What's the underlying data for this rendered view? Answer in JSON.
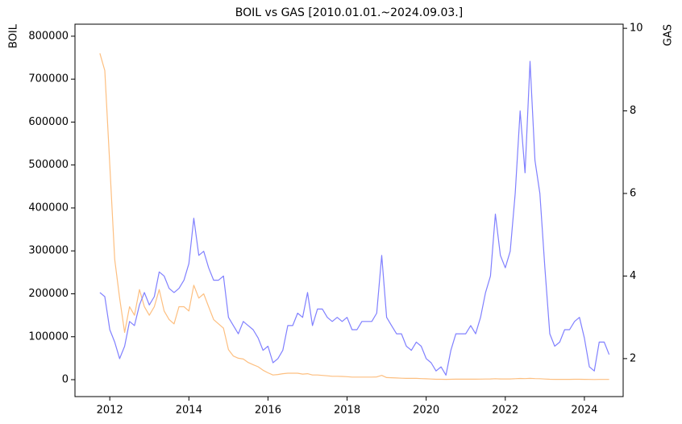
{
  "chart_data": {
    "type": "line",
    "title": "BOIL vs GAS [2010.01.01.~2024.09.03.]",
    "ylabel": "BOIL",
    "y2label": "GAS",
    "ylabel_color": "#ff8c00",
    "y2label_color": "#0000ff",
    "x": [
      2011.75,
      2011.875,
      2012.0,
      2012.125,
      2012.25,
      2012.375,
      2012.5,
      2012.625,
      2012.75,
      2012.875,
      2013.0,
      2013.125,
      2013.25,
      2013.375,
      2013.5,
      2013.625,
      2013.75,
      2013.875,
      2014.0,
      2014.125,
      2014.25,
      2014.375,
      2014.5,
      2014.625,
      2014.75,
      2014.875,
      2015.0,
      2015.125,
      2015.25,
      2015.375,
      2015.5,
      2015.625,
      2015.75,
      2015.875,
      2016.0,
      2016.125,
      2016.25,
      2016.375,
      2016.5,
      2016.625,
      2016.75,
      2016.875,
      2017.0,
      2017.125,
      2017.25,
      2017.375,
      2017.5,
      2017.625,
      2017.75,
      2017.875,
      2018.0,
      2018.125,
      2018.25,
      2018.375,
      2018.5,
      2018.625,
      2018.75,
      2018.875,
      2019.0,
      2019.125,
      2019.25,
      2019.375,
      2019.5,
      2019.625,
      2019.75,
      2019.875,
      2020.0,
      2020.125,
      2020.25,
      2020.375,
      2020.5,
      2020.625,
      2020.75,
      2020.875,
      2021.0,
      2021.125,
      2021.25,
      2021.375,
      2021.5,
      2021.625,
      2021.75,
      2021.875,
      2022.0,
      2022.125,
      2022.25,
      2022.375,
      2022.5,
      2022.625,
      2022.75,
      2022.875,
      2023.0,
      2023.125,
      2023.25,
      2023.375,
      2023.5,
      2023.625,
      2023.75,
      2023.875,
      2024.0,
      2024.125,
      2024.25,
      2024.375,
      2024.5,
      2024.625
    ],
    "series": [
      {
        "name": "BOIL",
        "color": "#fdbf80",
        "axis": "y",
        "values": [
          760000,
          720000,
          500000,
          280000,
          190000,
          110000,
          170000,
          150000,
          210000,
          170000,
          150000,
          170000,
          210000,
          160000,
          140000,
          130000,
          170000,
          170000,
          160000,
          220000,
          190000,
          200000,
          170000,
          140000,
          130000,
          120000,
          70000,
          55000,
          50000,
          48000,
          40000,
          35000,
          30000,
          22000,
          16000,
          11000,
          12000,
          14000,
          15000,
          15000,
          15000,
          13000,
          14000,
          11000,
          11000,
          10000,
          9000,
          8000,
          8000,
          7500,
          7000,
          6000,
          6000,
          6000,
          6000,
          6000,
          6500,
          10000,
          5000,
          4500,
          4000,
          3500,
          3000,
          3000,
          3000,
          2500,
          2000,
          1500,
          1000,
          1000,
          800,
          1000,
          1200,
          1200,
          1200,
          1300,
          1200,
          1300,
          1500,
          1700,
          2200,
          1800,
          1700,
          1800,
          2300,
          2800,
          2400,
          3000,
          2500,
          2200,
          1500,
          900,
          800,
          800,
          850,
          850,
          900,
          900,
          700,
          500,
          450,
          600,
          600,
          500
        ]
      },
      {
        "name": "GAS",
        "color": "#8080ff",
        "axis": "y2",
        "values": [
          3.6,
          3.5,
          2.7,
          2.4,
          2.0,
          2.3,
          2.9,
          2.8,
          3.3,
          3.6,
          3.3,
          3.5,
          4.1,
          4.0,
          3.7,
          3.6,
          3.7,
          3.9,
          4.3,
          5.4,
          4.5,
          4.6,
          4.2,
          3.9,
          3.9,
          4.0,
          3.0,
          2.8,
          2.6,
          2.9,
          2.8,
          2.7,
          2.5,
          2.2,
          2.3,
          1.9,
          2.0,
          2.2,
          2.8,
          2.8,
          3.1,
          3.0,
          3.6,
          2.8,
          3.2,
          3.2,
          3.0,
          2.9,
          3.0,
          2.9,
          3.0,
          2.7,
          2.7,
          2.9,
          2.9,
          2.9,
          3.1,
          4.5,
          3.0,
          2.8,
          2.6,
          2.6,
          2.3,
          2.2,
          2.4,
          2.3,
          2.0,
          1.9,
          1.7,
          1.8,
          1.6,
          2.2,
          2.6,
          2.6,
          2.6,
          2.8,
          2.6,
          3.0,
          3.6,
          4.0,
          5.5,
          4.5,
          4.2,
          4.6,
          6.0,
          8.0,
          6.5,
          9.2,
          6.8,
          6.0,
          4.2,
          2.6,
          2.3,
          2.4,
          2.7,
          2.7,
          2.9,
          3.0,
          2.5,
          1.8,
          1.7,
          2.4,
          2.4,
          2.1
        ]
      }
    ],
    "xlim": [
      2011.12,
      2024.98
    ],
    "xticks": [
      2012,
      2014,
      2016,
      2018,
      2020,
      2022,
      2024
    ],
    "ylim": [
      -39400,
      828000
    ],
    "yticks": [
      0,
      100000,
      200000,
      300000,
      400000,
      500000,
      600000,
      700000,
      800000
    ],
    "y2lim": [
      1.08,
      10.1
    ],
    "y2ticks": [
      2,
      4,
      6,
      8,
      10
    ]
  }
}
